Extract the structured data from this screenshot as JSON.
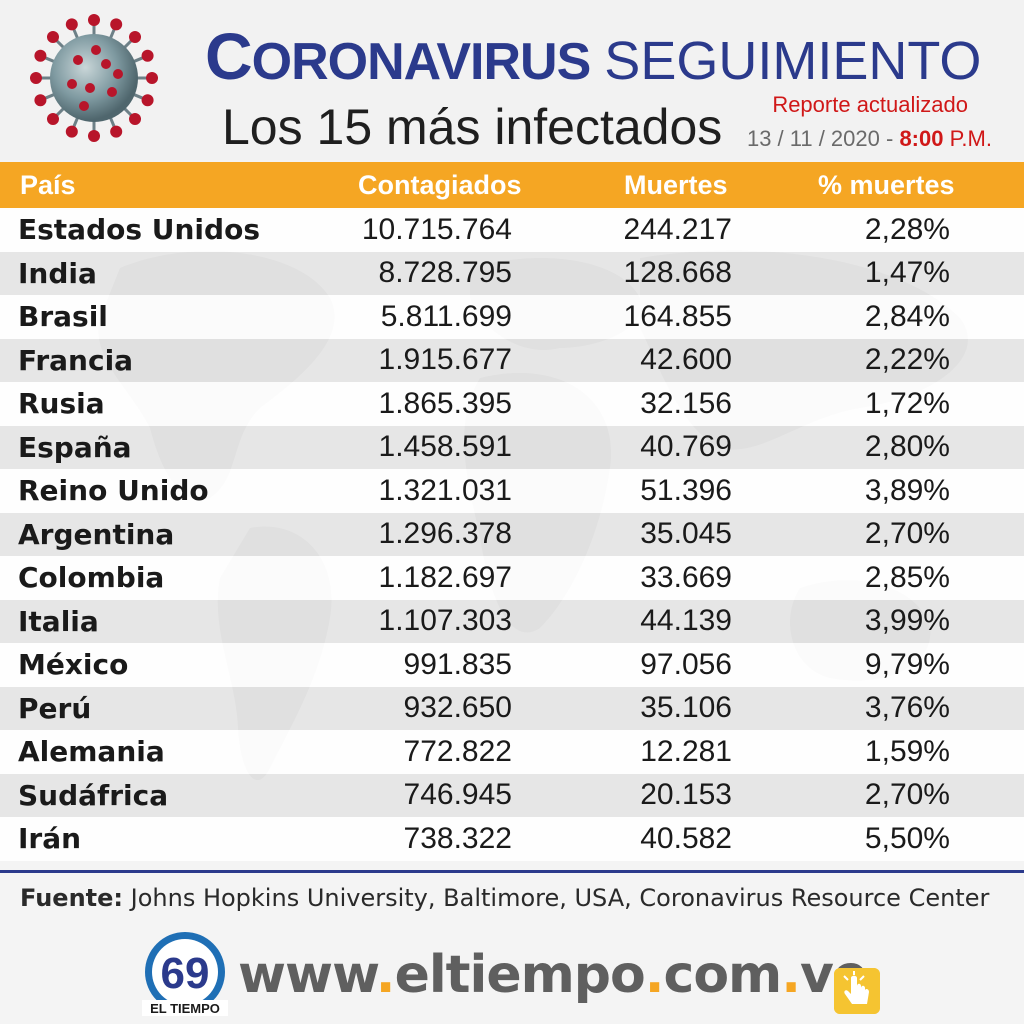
{
  "header": {
    "title_main_first": "C",
    "title_main_rest": "ORONAVIRUS",
    "title_secondary": "SEGUIMIENTO",
    "subtitle": "Los 15 más infectados",
    "report_label": "Reporte actualizado",
    "report_date": "13 / 11 / 2020 - ",
    "report_time": "8:00",
    "report_ampm": " P.M."
  },
  "table": {
    "headers": [
      "País",
      "Contagiados",
      "Muertes",
      "% muertes"
    ],
    "rows": [
      {
        "country": "Estados Unidos",
        "cases": "10.715.764",
        "deaths": "244.217",
        "pct": "2,28%"
      },
      {
        "country": "India",
        "cases": "8.728.795",
        "deaths": "128.668",
        "pct": "1,47%"
      },
      {
        "country": "Brasil",
        "cases": "5.811.699",
        "deaths": "164.855",
        "pct": "2,84%"
      },
      {
        "country": "Francia",
        "cases": "1.915.677",
        "deaths": "42.600",
        "pct": "2,22%"
      },
      {
        "country": "Rusia",
        "cases": "1.865.395",
        "deaths": "32.156",
        "pct": "1,72%"
      },
      {
        "country": "España",
        "cases": "1.458.591",
        "deaths": "40.769",
        "pct": "2,80%"
      },
      {
        "country": "Reino Unido",
        "cases": "1.321.031",
        "deaths": "51.396",
        "pct": "3,89%"
      },
      {
        "country": "Argentina",
        "cases": "1.296.378",
        "deaths": "35.045",
        "pct": "2,70%"
      },
      {
        "country": "Colombia",
        "cases": "1.182.697",
        "deaths": "33.669",
        "pct": "2,85%"
      },
      {
        "country": "Italia",
        "cases": "1.107.303",
        "deaths": "44.139",
        "pct": "3,99%"
      },
      {
        "country": "México",
        "cases": "991.835",
        "deaths": "97.056",
        "pct": "9,79%"
      },
      {
        "country": "Perú",
        "cases": "932.650",
        "deaths": "35.106",
        "pct": "3,76%"
      },
      {
        "country": "Alemania",
        "cases": "772.822",
        "deaths": "12.281",
        "pct": "1,59%"
      },
      {
        "country": "Sudáfrica",
        "cases": "746.945",
        "deaths": "20.153",
        "pct": "2,70%"
      },
      {
        "country": "Irán",
        "cases": "738.322",
        "deaths": "40.582",
        "pct": "5,50%"
      }
    ]
  },
  "footer": {
    "source_label": "Fuente:",
    "source_text": " Johns Hopkins University, Baltimore, USA, Coronavirus Resource Center",
    "website_parts": [
      "www",
      ".",
      "eltiempo",
      ".",
      "com",
      ".",
      "ve"
    ],
    "logo_text": "EL TIEMPO",
    "logo_number": "69"
  },
  "colors": {
    "accent": "#f5a623",
    "title_blue": "#2b3a8c",
    "report_red": "#d01818"
  },
  "icons": [
    "coronavirus-illustration",
    "el-tiempo-logo",
    "hand-pointer-icon",
    "world-map-background"
  ]
}
